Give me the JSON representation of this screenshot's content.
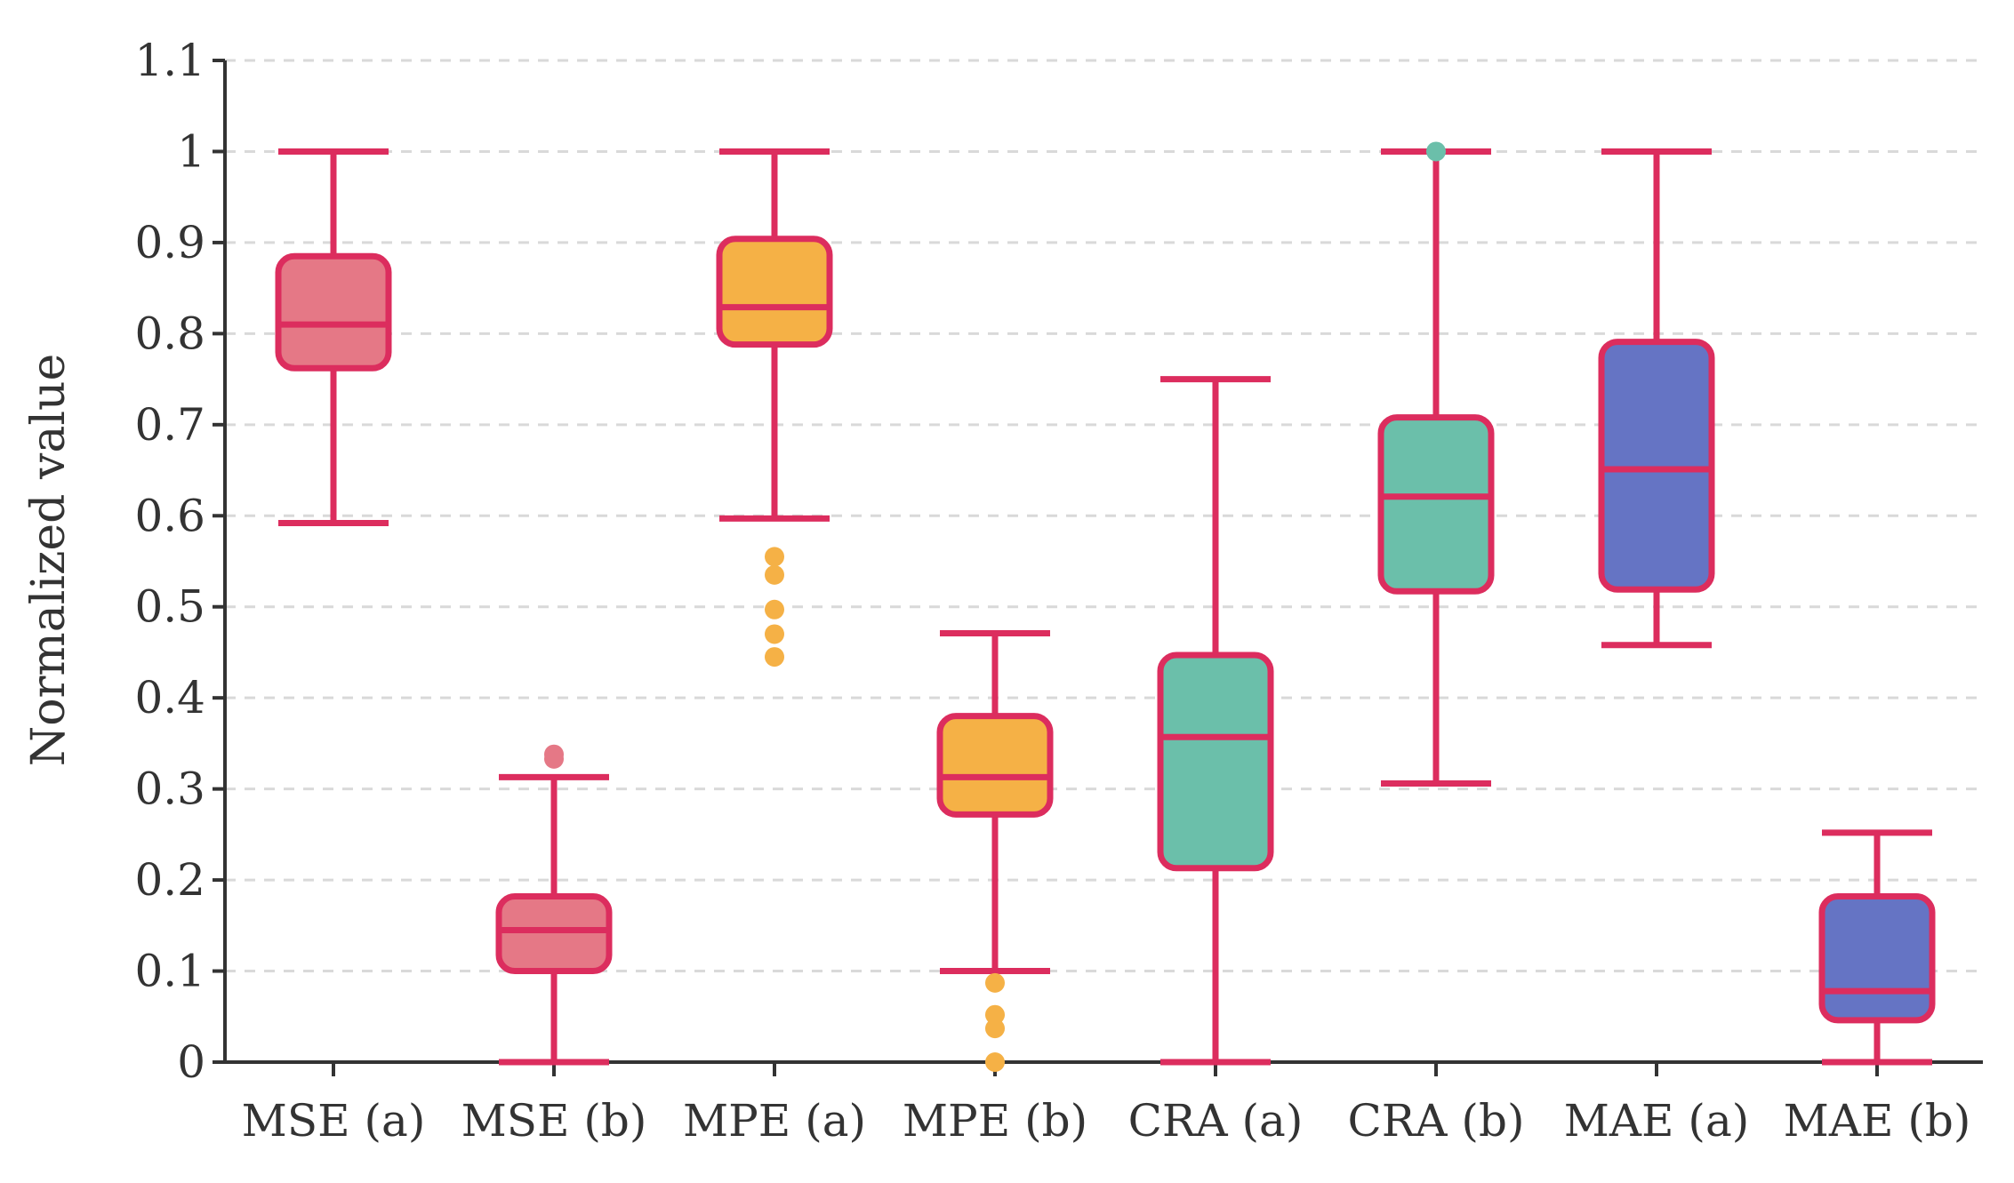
{
  "chart_data": {
    "type": "boxplot",
    "title": "",
    "xlabel": "",
    "ylabel": "Normalized value",
    "ylim": [
      0,
      1.1
    ],
    "yticks": [
      {
        "value": 0,
        "label": "0"
      },
      {
        "value": 0.1,
        "label": "0.1"
      },
      {
        "value": 0.2,
        "label": "0.2"
      },
      {
        "value": 0.3,
        "label": "0.3"
      },
      {
        "value": 0.4,
        "label": "0.4"
      },
      {
        "value": 0.5,
        "label": "0.5"
      },
      {
        "value": 0.6,
        "label": "0.6"
      },
      {
        "value": 0.7,
        "label": "0.7"
      },
      {
        "value": 0.8,
        "label": "0.8"
      },
      {
        "value": 0.9,
        "label": "0.9"
      },
      {
        "value": 1,
        "label": "1"
      },
      {
        "value": 1.1,
        "label": "1.1"
      }
    ],
    "grid": "horizontal-dashed",
    "outline_color": "#dc2d5e",
    "categories": [
      "MSE (a)",
      "MSE (b)",
      "MPE (a)",
      "MPE (b)",
      "CRA (a)",
      "CRA (b)",
      "MAE (a)",
      "MAE (b)"
    ],
    "boxes": [
      {
        "name": "MSE (a)",
        "min": 0.592,
        "q1": 0.762,
        "median": 0.81,
        "q3": 0.885,
        "max": 1.0,
        "outliers": [],
        "color": "#e57886"
      },
      {
        "name": "MSE (b)",
        "min": 0.0,
        "q1": 0.1,
        "median": 0.145,
        "q3": 0.182,
        "max": 0.313,
        "outliers": [
          0.333,
          0.338
        ],
        "color": "#e57886"
      },
      {
        "name": "MPE (a)",
        "min": 0.597,
        "q1": 0.788,
        "median": 0.829,
        "q3": 0.904,
        "max": 1.0,
        "outliers": [
          0.445,
          0.47,
          0.497,
          0.535,
          0.555
        ],
        "color": "#f5b146"
      },
      {
        "name": "MPE (b)",
        "min": 0.1,
        "q1": 0.272,
        "median": 0.313,
        "q3": 0.38,
        "max": 0.471,
        "outliers": [
          0.0,
          0.037,
          0.052,
          0.087
        ],
        "color": "#f5b146"
      },
      {
        "name": "CRA (a)",
        "min": 0.0,
        "q1": 0.213,
        "median": 0.357,
        "q3": 0.447,
        "max": 0.75,
        "outliers": [],
        "color": "#6bbfaa"
      },
      {
        "name": "CRA (b)",
        "min": 0.306,
        "q1": 0.517,
        "median": 0.621,
        "q3": 0.708,
        "max": 1.0,
        "outliers": [
          1.0
        ],
        "color": "#6bbfaa"
      },
      {
        "name": "MAE (a)",
        "min": 0.458,
        "q1": 0.519,
        "median": 0.651,
        "q3": 0.791,
        "max": 1.0,
        "outliers": [],
        "color": "#6574c4"
      },
      {
        "name": "MAE (b)",
        "min": 0.0,
        "q1": 0.046,
        "median": 0.078,
        "q3": 0.182,
        "max": 0.252,
        "outliers": [],
        "color": "#6574c4"
      }
    ]
  }
}
